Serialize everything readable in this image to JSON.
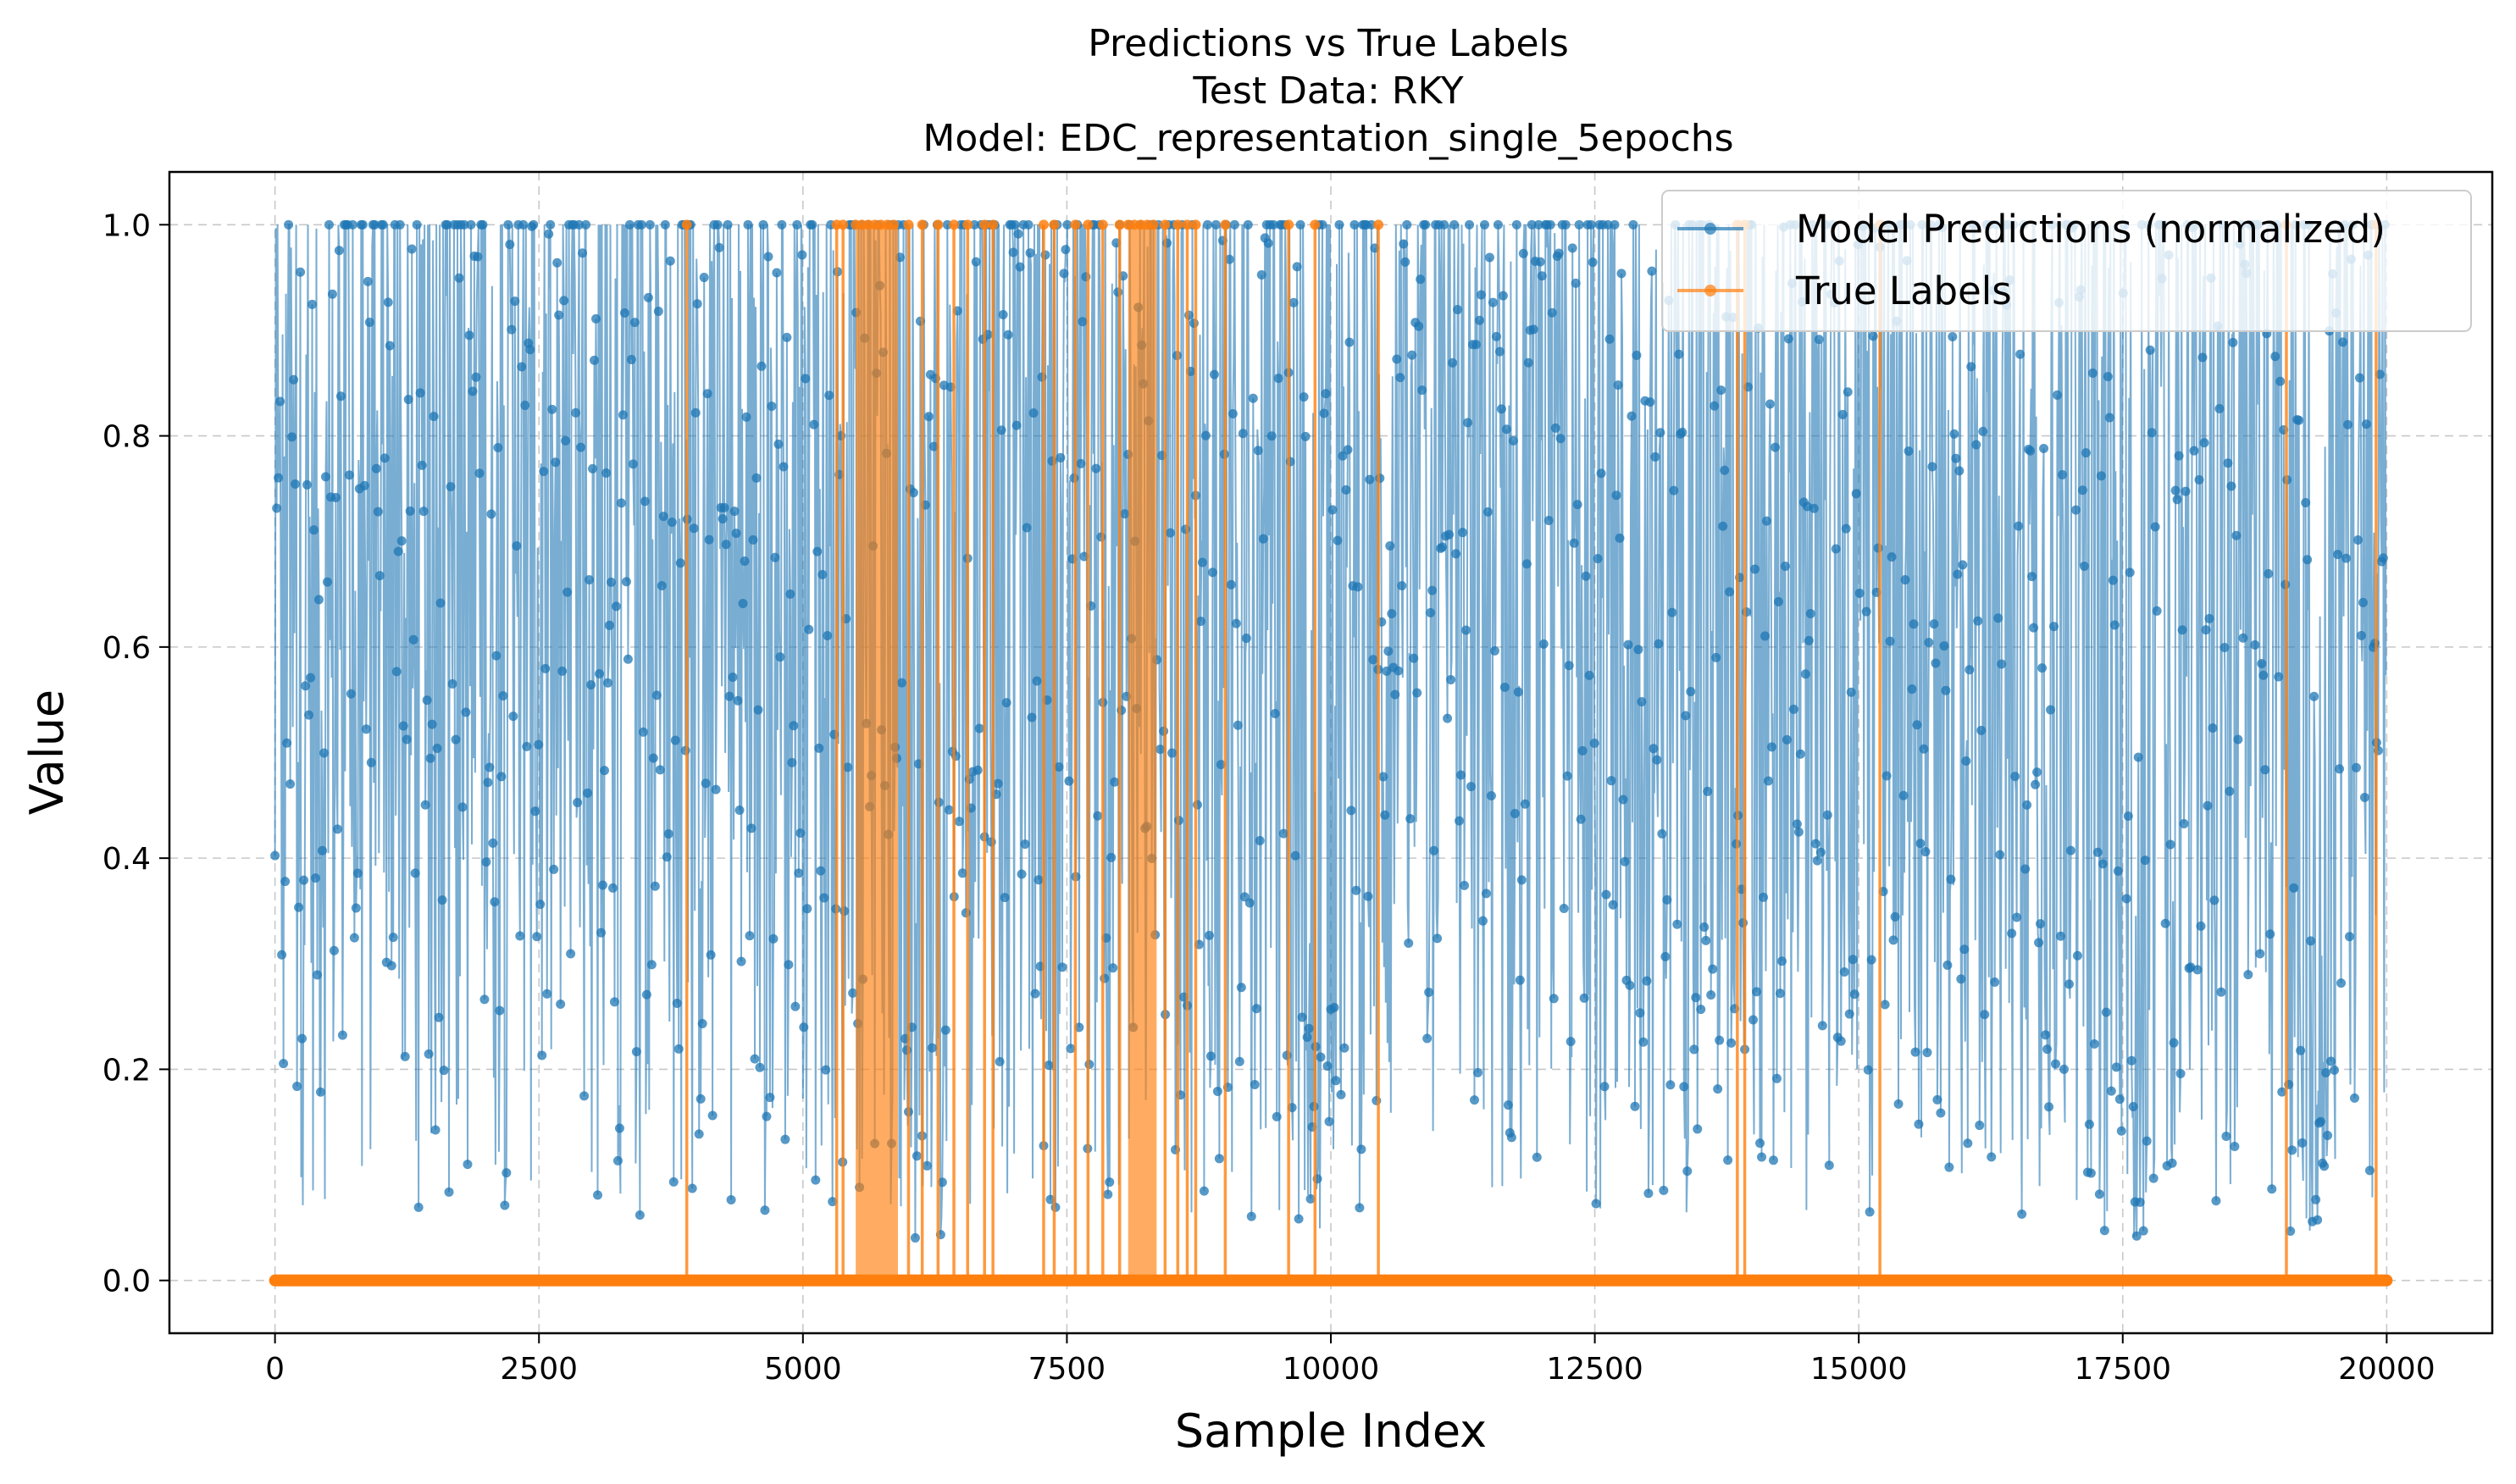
{
  "chart_data": {
    "type": "line",
    "title_lines": [
      "Predictions vs True Labels",
      "Test Data: RKY",
      "Model: EDC_representation_single_5epochs"
    ],
    "xlabel": "Sample Index",
    "ylabel": "Value",
    "xlim": [
      -1000,
      21000
    ],
    "ylim": [
      -0.05,
      1.05
    ],
    "xticks": [
      0,
      2500,
      5000,
      7500,
      10000,
      12500,
      15000,
      17500,
      20000
    ],
    "yticks": [
      0.0,
      0.2,
      0.4,
      0.6,
      0.8,
      1.0
    ],
    "xtick_labels": [
      "0",
      "2500",
      "5000",
      "7500",
      "10000",
      "12500",
      "15000",
      "17500",
      "20000"
    ],
    "ytick_labels": [
      "0.0",
      "0.2",
      "0.4",
      "0.6",
      "0.8",
      "1.0"
    ],
    "grid": true,
    "legend_position": "top-right",
    "n_samples": 20000,
    "series": [
      {
        "name": "Model Predictions (normalized)",
        "color": "#1f77b4",
        "marker": "circle",
        "value_range": [
          0.03,
          1.0
        ],
        "description_of_density": "dense noisy values between ~0.05 and 1.0 across all 20000 samples; lower minima near 5800-6400, 9600-9900, 17300-17700 and 19100-19400"
      },
      {
        "name": "True Labels",
        "color": "#ff7f0e",
        "marker": "circle",
        "baseline": 0.0,
        "positive_value": 1.0,
        "positive_spikes_x": [
          3900,
          5320,
          5380,
          6000,
          6130,
          6280,
          6430,
          6560,
          6720,
          6800,
          7280,
          7380,
          7580,
          7700,
          7840,
          8000,
          8430,
          8550,
          8640,
          8720,
          9000,
          9600,
          9850,
          10450,
          13850,
          13920,
          15200,
          19050,
          19900
        ],
        "positive_bands_x": [
          [
            5500,
            5900
          ],
          [
            8080,
            8350
          ]
        ]
      }
    ]
  }
}
